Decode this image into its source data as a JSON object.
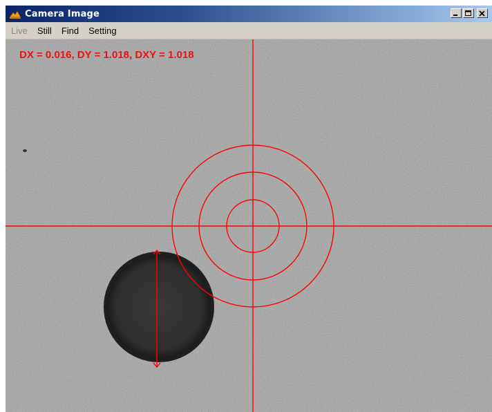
{
  "window": {
    "title": "Camera Image",
    "app_icon": "camera-app-icon",
    "controls": [
      "minimize-icon",
      "maximize-icon",
      "close-icon"
    ]
  },
  "menu": {
    "live": "Live",
    "still": "Still",
    "find": "Find",
    "setting": "Setting"
  },
  "overlay": {
    "readout": "DX = 0.016, DY = 1.018, DXY = 1.018",
    "color": "#ff0000"
  },
  "colors": {
    "titlebar_start": "#0a246a",
    "titlebar_end": "#a6caf0",
    "menubar": "#d4d0c8",
    "overlay_red": "#ff0000"
  }
}
